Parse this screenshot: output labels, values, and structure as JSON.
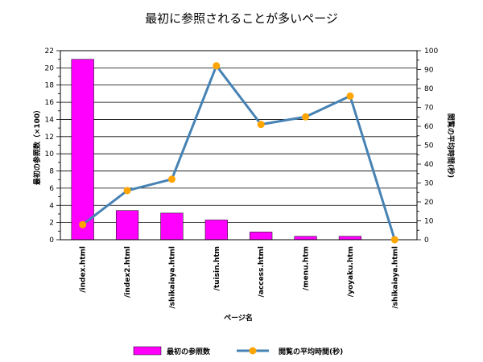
{
  "chart_data": {
    "type": "bar",
    "title": "最初に参照されることが多いページ",
    "xlabel": "ページ名",
    "ylabel_left": "最初の参照数（×100）",
    "ylabel_right": "閲覧の平均時間(秒)",
    "ylim_left": [
      0,
      22
    ],
    "yticks_left": [
      0,
      2,
      4,
      6,
      8,
      10,
      12,
      14,
      16,
      18,
      20,
      22
    ],
    "ylim_right": [
      0,
      100
    ],
    "yticks_right": [
      0,
      10,
      20,
      30,
      40,
      50,
      60,
      70,
      80,
      90,
      100
    ],
    "grid": true,
    "legend_position": "bottom",
    "categories": [
      "/index.html",
      "/index2.html",
      "/shikaiaya.html",
      "/tuisin.htm",
      "/access.html",
      "/menu.htm",
      "/yoyaku.htm",
      "/shikaiaya.html"
    ],
    "series": [
      {
        "name": "最初の参照数",
        "type": "bar",
        "axis": "left",
        "color": "#ff00ff",
        "values": [
          21,
          3.4,
          3.1,
          2.3,
          0.9,
          0.4,
          0.4,
          0
        ]
      },
      {
        "name": "閲覧の平均時間(秒)",
        "type": "line",
        "axis": "right",
        "color": "#4682b4",
        "marker_color": "#ffa500",
        "values": [
          8,
          26,
          32,
          92,
          61,
          65,
          76,
          0
        ]
      }
    ]
  }
}
